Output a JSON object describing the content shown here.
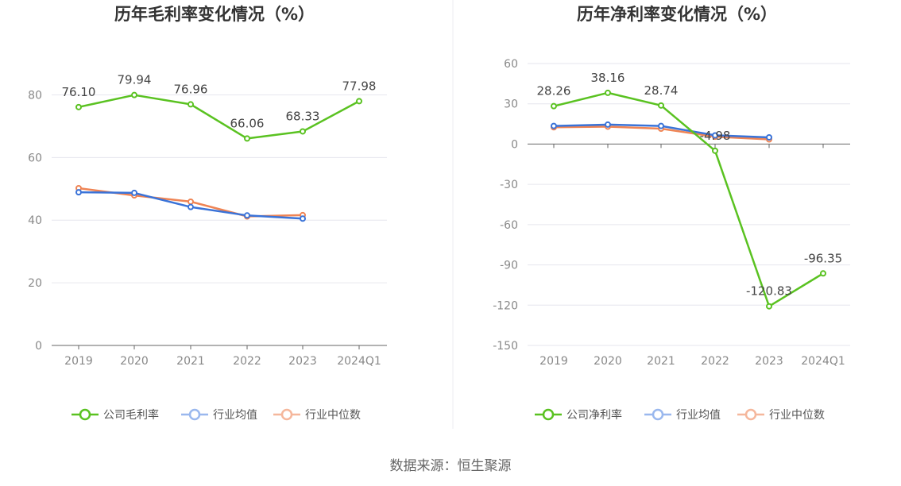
{
  "source": "数据来源：恒生聚源",
  "colors": {
    "company": "#5ac221",
    "industry_avg": "#3a73d8",
    "industry_median": "#ef8454",
    "industry_avg_legend": "#9ab8ee",
    "industry_median_legend": "#f5b79c",
    "grid": "#e6e6ee",
    "axis": "#666666"
  },
  "chart_data": [
    {
      "type": "line",
      "title": "历年毛利率变化情况（%）",
      "categories": [
        "2019",
        "2020",
        "2021",
        "2022",
        "2023",
        "2024Q1"
      ],
      "yticks": [
        "0",
        "20",
        "40",
        "60",
        "80"
      ],
      "ylim": [
        0,
        90
      ],
      "grid": true,
      "legend_position": "bottom",
      "series": [
        {
          "name": "公司毛利率",
          "values": [
            76.1,
            79.94,
            76.96,
            66.06,
            68.33,
            77.98
          ],
          "labels": [
            "76.10",
            "79.94",
            "76.96",
            "66.06",
            "68.33",
            "77.98"
          ]
        },
        {
          "name": "行业均值",
          "values": [
            48.9,
            48.7,
            44.2,
            41.5,
            40.5,
            null
          ]
        },
        {
          "name": "行业中位数",
          "values": [
            50.2,
            47.9,
            45.9,
            41.2,
            41.6,
            null
          ]
        }
      ]
    },
    {
      "type": "line",
      "title": "历年净利率变化情况（%）",
      "categories": [
        "2019",
        "2020",
        "2021",
        "2022",
        "2023",
        "2024Q1"
      ],
      "yticks": [
        "60",
        "30",
        "0",
        "-30",
        "-60",
        "-90",
        "-120",
        "-150"
      ],
      "ylim": [
        -150,
        60
      ],
      "grid": true,
      "legend_position": "bottom",
      "series": [
        {
          "name": "公司净利率",
          "values": [
            28.26,
            38.16,
            28.74,
            -4.98,
            -120.83,
            -96.35
          ],
          "labels": [
            "28.26",
            "38.16",
            "28.74",
            "-4.98",
            "-120.83",
            "-96.35"
          ]
        },
        {
          "name": "行业均值",
          "values": [
            13.5,
            14.5,
            13.5,
            6.5,
            5.0,
            null
          ]
        },
        {
          "name": "行业中位数",
          "values": [
            12.5,
            13.0,
            11.5,
            5.5,
            3.5,
            null
          ]
        }
      ]
    }
  ]
}
